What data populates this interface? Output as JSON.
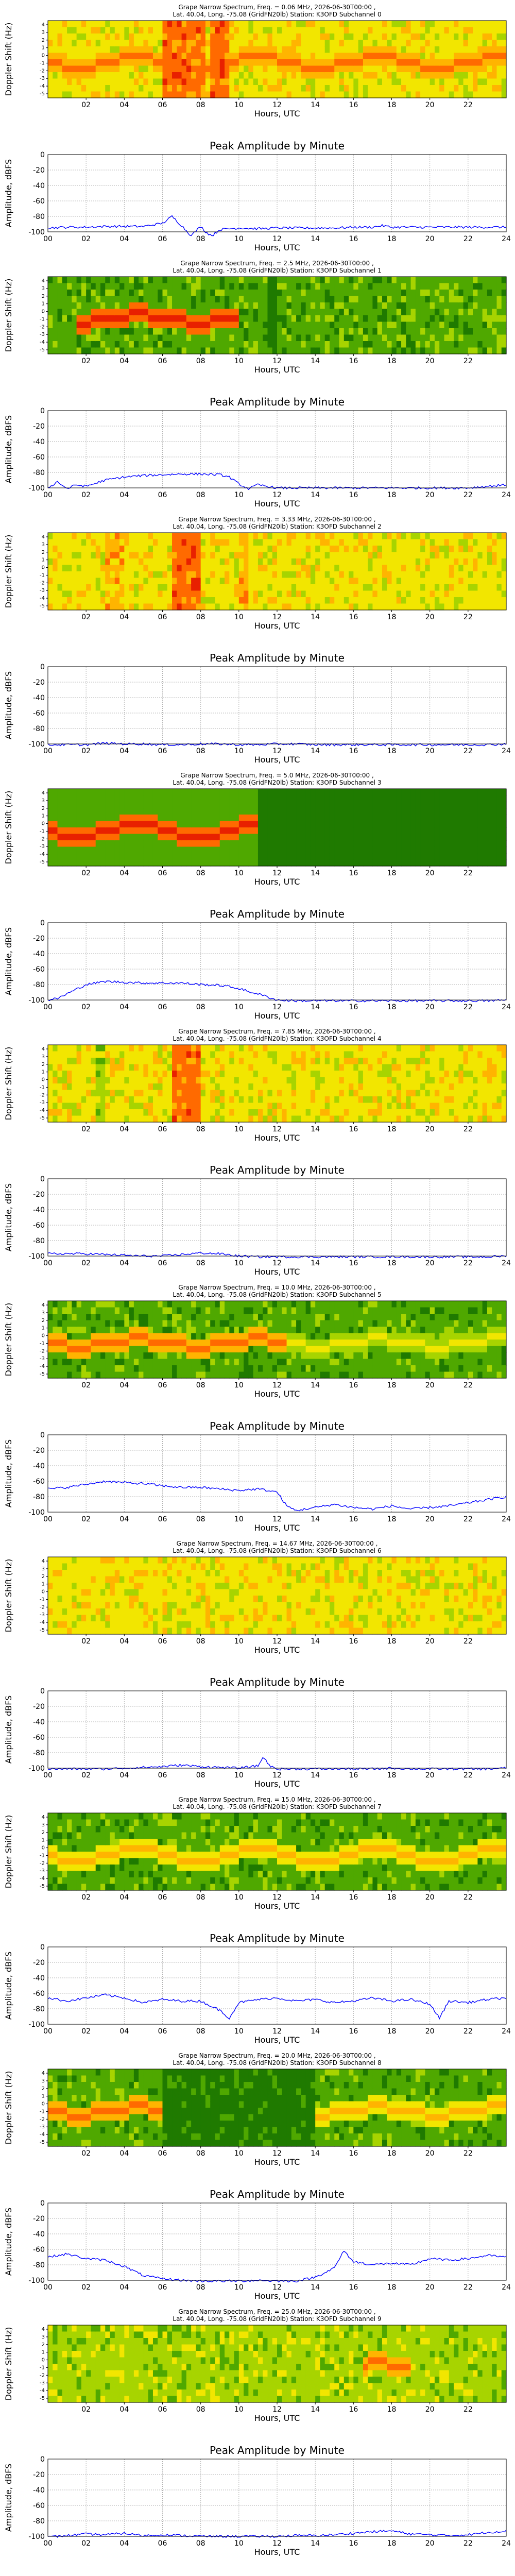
{
  "chart_data": {
    "type": "grape-spectrogram-and-amplitude",
    "channels": [
      {
        "spectrogram": {
          "title_line1": "Grape Narrow Spectrum, Freq. = 0.06 MHz, 2026-06-30T00:00 ,",
          "title_line2": "Lat.  40.04, Long. -75.08 (GridFN20lb) Station: K3OFD Subchannel 0",
          "xlabel": "Hours, UTC",
          "ylabel": "Doppler Shift (Hz)"
        },
        "amplitude": {
          "title": "Peak Amplitude by Minute",
          "xlabel": "Hours, UTC",
          "ylabel": "Amplitude, dBFS",
          "ylim": [
            -100,
            0
          ],
          "x": [
            0,
            1,
            2,
            3,
            4,
            5,
            6,
            6.5,
            7,
            7.5,
            8,
            8.3,
            8.6,
            9,
            10,
            11,
            12,
            13,
            14,
            15,
            16,
            17,
            17.5,
            18,
            19,
            20,
            21,
            22,
            23,
            24
          ],
          "y": [
            -95,
            -94,
            -94,
            -93,
            -93,
            -93,
            -89,
            -80,
            -92,
            -105,
            -93,
            -101,
            -105,
            -97,
            -95,
            -96,
            -95,
            -95,
            -95,
            -95,
            -94,
            -94,
            -92,
            -94,
            -94,
            -94,
            -94,
            -94,
            -94,
            -94
          ]
        }
      },
      {
        "spectrogram": {
          "title_line1": "Grape Narrow Spectrum, Freq. = 2.5 MHz, 2026-06-30T00:00 ,",
          "title_line2": "Lat.  40.04, Long. -75.08 (GridFN20lb) Station: K3OFD Subchannel 1",
          "xlabel": "Hours, UTC",
          "ylabel": "Doppler Shift (Hz)"
        },
        "amplitude": {
          "title": "Peak Amplitude by Minute",
          "xlabel": "Hours, UTC",
          "ylabel": "Amplitude, dBFS",
          "ylim": [
            -100,
            0
          ],
          "x": [
            0,
            0.5,
            1,
            1.5,
            2,
            3,
            4,
            5,
            6,
            7,
            8,
            9,
            9.5,
            10,
            10.5,
            11,
            12,
            13,
            14,
            15,
            16,
            17,
            18,
            19,
            20,
            21,
            22,
            23,
            24
          ],
          "y": [
            -100,
            -92,
            -101,
            -96,
            -98,
            -90,
            -86,
            -84,
            -83,
            -82,
            -82,
            -83,
            -86,
            -95,
            -101,
            -96,
            -100,
            -100,
            -100,
            -100,
            -100,
            -100,
            -100,
            -100,
            -100,
            -100,
            -100,
            -98,
            -96
          ]
        }
      },
      {
        "spectrogram": {
          "title_line1": "Grape Narrow Spectrum, Freq. = 3.33 MHz, 2026-06-30T00:00 ,",
          "title_line2": "Lat.  40.04, Long. -75.08 (GridFN20lb) Station: K3OFD Subchannel 2",
          "xlabel": "Hours, UTC",
          "ylabel": "Doppler Shift (Hz)"
        },
        "amplitude": {
          "title": "Peak Amplitude by Minute",
          "xlabel": "Hours, UTC",
          "ylabel": "Amplitude, dBFS",
          "ylim": [
            -100,
            0
          ],
          "x": [
            0,
            1,
            2,
            3,
            4,
            5,
            6,
            7,
            8,
            9,
            10,
            11,
            12,
            13,
            14,
            15,
            16,
            17,
            18,
            19,
            20,
            21,
            22,
            23,
            24
          ],
          "y": [
            -101,
            -101,
            -101,
            -99,
            -100,
            -100,
            -101,
            -101,
            -100,
            -100,
            -101,
            -101,
            -100,
            -100,
            -101,
            -101,
            -101,
            -101,
            -101,
            -101,
            -101,
            -101,
            -101,
            -101,
            -100
          ]
        }
      },
      {
        "spectrogram": {
          "title_line1": "Grape Narrow Spectrum, Freq. = 5.0 MHz, 2026-06-30T00:00 ,",
          "title_line2": "Lat.  40.04, Long. -75.08 (GridFN20lb) Station: K3OFD Subchannel 3",
          "xlabel": "Hours, UTC",
          "ylabel": "Doppler Shift (Hz)"
        },
        "amplitude": {
          "title": "Peak Amplitude by Minute",
          "xlabel": "Hours, UTC",
          "ylabel": "Amplitude, dBFS",
          "ylim": [
            -100,
            0
          ],
          "x": [
            0,
            0.5,
            1,
            1.5,
            2,
            3,
            4,
            5,
            6,
            7,
            8,
            9,
            10,
            10.5,
            11,
            11.5,
            12,
            13,
            14,
            15,
            16,
            17,
            18,
            19,
            20,
            21,
            22,
            23,
            24
          ],
          "y": [
            -100,
            -98,
            -92,
            -86,
            -80,
            -76,
            -77,
            -78,
            -78,
            -78,
            -80,
            -81,
            -85,
            -89,
            -92,
            -96,
            -100,
            -101,
            -101,
            -101,
            -101,
            -101,
            -101,
            -101,
            -101,
            -101,
            -101,
            -101,
            -100
          ]
        }
      },
      {
        "spectrogram": {
          "title_line1": "Grape Narrow Spectrum, Freq. = 7.85 MHz, 2026-06-30T00:00 ,",
          "title_line2": "Lat.  40.04, Long. -75.08 (GridFN20lb) Station: K3OFD Subchannel 4",
          "xlabel": "Hours, UTC",
          "ylabel": "Doppler Shift (Hz)"
        },
        "amplitude": {
          "title": "Peak Amplitude by Minute",
          "xlabel": "Hours, UTC",
          "ylabel": "Amplitude, dBFS",
          "ylim": [
            -100,
            0
          ],
          "x": [
            0,
            1,
            2,
            3,
            4,
            5,
            6,
            7,
            8,
            9,
            10,
            11,
            12,
            13,
            14,
            15,
            16,
            17,
            18,
            19,
            20,
            21,
            22,
            23,
            24
          ],
          "y": [
            -97,
            -97,
            -97,
            -98,
            -99,
            -100,
            -100,
            -98,
            -96,
            -97,
            -100,
            -101,
            -101,
            -101,
            -101,
            -101,
            -101,
            -101,
            -101,
            -101,
            -101,
            -101,
            -101,
            -101,
            -100
          ]
        }
      },
      {
        "spectrogram": {
          "title_line1": "Grape Narrow Spectrum, Freq. = 10.0 MHz, 2026-06-30T00:00 ,",
          "title_line2": "Lat.  40.04, Long. -75.08 (GridFN20lb) Station: K3OFD Subchannel 5",
          "xlabel": "Hours, UTC",
          "ylabel": "Doppler Shift (Hz)"
        },
        "amplitude": {
          "title": "Peak Amplitude by Minute",
          "xlabel": "Hours, UTC",
          "ylabel": "Amplitude, dBFS",
          "ylim": [
            -100,
            0
          ],
          "x": [
            0,
            1,
            2,
            3,
            4,
            5,
            6,
            7,
            8,
            9,
            10,
            11,
            12,
            12.5,
            13,
            14,
            15,
            16,
            17,
            18,
            19,
            20,
            21,
            22,
            23,
            24
          ],
          "y": [
            -70,
            -68,
            -64,
            -60,
            -62,
            -63,
            -66,
            -68,
            -68,
            -70,
            -72,
            -70,
            -74,
            -92,
            -98,
            -94,
            -90,
            -94,
            -96,
            -92,
            -96,
            -94,
            -92,
            -88,
            -84,
            -80
          ]
        }
      },
      {
        "spectrogram": {
          "title_line1": "Grape Narrow Spectrum, Freq. = 14.67 MHz, 2026-06-30T00:00 ,",
          "title_line2": "Lat.  40.04, Long. -75.08 (GridFN20lb) Station: K3OFD Subchannel 6",
          "xlabel": "Hours, UTC",
          "ylabel": "Doppler Shift (Hz)"
        },
        "amplitude": {
          "title": "Peak Amplitude by Minute",
          "xlabel": "Hours, UTC",
          "ylabel": "Amplitude, dBFS",
          "ylim": [
            -100,
            0
          ],
          "x": [
            0,
            1,
            2,
            3,
            4,
            5,
            6,
            7,
            8,
            9,
            10,
            11,
            11.3,
            11.6,
            12,
            13,
            14,
            15,
            16,
            17,
            18,
            19,
            20,
            21,
            22,
            23,
            24
          ],
          "y": [
            -101,
            -101,
            -101,
            -101,
            -100,
            -99,
            -98,
            -96,
            -98,
            -99,
            -100,
            -97,
            -85,
            -97,
            -101,
            -101,
            -101,
            -101,
            -101,
            -101,
            -100,
            -101,
            -101,
            -101,
            -101,
            -101,
            -100
          ]
        }
      },
      {
        "spectrogram": {
          "title_line1": "Grape Narrow Spectrum, Freq. = 15.0 MHz, 2026-06-30T00:00 ,",
          "title_line2": "Lat.  40.04, Long. -75.08 (GridFN20lb) Station: K3OFD Subchannel 7",
          "xlabel": "Hours, UTC",
          "ylabel": "Doppler Shift (Hz)"
        },
        "amplitude": {
          "title": "Peak Amplitude by Minute",
          "xlabel": "Hours, UTC",
          "ylabel": "Amplitude, dBFS",
          "ylim": [
            -100,
            0
          ],
          "x": [
            0,
            1,
            2,
            3,
            4,
            5,
            6,
            7,
            8,
            9,
            9.5,
            10,
            11,
            12,
            13,
            14,
            15,
            16,
            17,
            18,
            19,
            20,
            20.5,
            21,
            22,
            23,
            24
          ],
          "y": [
            -66,
            -70,
            -66,
            -62,
            -66,
            -72,
            -68,
            -70,
            -70,
            -82,
            -92,
            -72,
            -68,
            -66,
            -70,
            -68,
            -72,
            -70,
            -66,
            -70,
            -68,
            -74,
            -92,
            -70,
            -72,
            -68,
            -66
          ]
        }
      },
      {
        "spectrogram": {
          "title_line1": "Grape Narrow Spectrum, Freq. = 20.0 MHz, 2026-06-30T00:00 ,",
          "title_line2": "Lat.  40.04, Long. -75.08 (GridFN20lb) Station: K3OFD Subchannel 8",
          "xlabel": "Hours, UTC",
          "ylabel": "Doppler Shift (Hz)"
        },
        "amplitude": {
          "title": "Peak Amplitude by Minute",
          "xlabel": "Hours, UTC",
          "ylabel": "Amplitude, dBFS",
          "ylim": [
            -100,
            0
          ],
          "x": [
            0,
            1,
            2,
            3,
            4,
            5,
            6,
            7,
            8,
            9,
            10,
            11,
            12,
            13,
            14,
            15,
            15.5,
            16,
            17,
            18,
            19,
            20,
            21,
            22,
            23,
            24
          ],
          "y": [
            -70,
            -66,
            -72,
            -74,
            -82,
            -94,
            -98,
            -100,
            -101,
            -101,
            -101,
            -100,
            -101,
            -101,
            -96,
            -84,
            -62,
            -76,
            -80,
            -78,
            -80,
            -72,
            -74,
            -72,
            -68,
            -70
          ]
        }
      },
      {
        "spectrogram": {
          "title_line1": "Grape Narrow Spectrum, Freq. = 25.0 MHz, 2026-06-30T00:00 ,",
          "title_line2": "Lat.  40.04, Long. -75.08 (GridFN20lb) Station: K3OFD Subchannel 9",
          "xlabel": "Hours, UTC",
          "ylabel": "Doppler Shift (Hz)"
        },
        "amplitude": {
          "title": "Peak Amplitude by Minute",
          "xlabel": "Hours, UTC",
          "ylabel": "Amplitude, dBFS",
          "ylim": [
            -100,
            0
          ],
          "x": [
            0,
            1,
            2,
            3,
            4,
            5,
            6,
            7,
            8,
            9,
            10,
            11,
            12,
            13,
            14,
            15,
            16,
            17,
            18,
            19,
            20,
            21,
            22,
            23,
            24
          ],
          "y": [
            -101,
            -99,
            -97,
            -98,
            -96,
            -99,
            -98,
            -99,
            -100,
            -100,
            -100,
            -100,
            -100,
            -99,
            -99,
            -98,
            -96,
            -94,
            -93,
            -97,
            -98,
            -99,
            -98,
            -95,
            -93
          ]
        }
      }
    ],
    "doppler_ticks": [
      "4",
      "3",
      "2",
      "1",
      "0",
      "-1",
      "-2",
      "-3",
      "-4",
      "-5"
    ],
    "spectrogram_xticks": [
      "02",
      "04",
      "06",
      "08",
      "10",
      "12",
      "14",
      "16",
      "18",
      "20",
      "22"
    ],
    "amplitude_xticks": [
      "00",
      "02",
      "04",
      "06",
      "08",
      "10",
      "12",
      "14",
      "16",
      "18",
      "20",
      "22",
      "24"
    ],
    "amplitude_yticks": [
      "0",
      "-20",
      "-40",
      "-60",
      "-80",
      "-100"
    ],
    "line_color": "#0000ff",
    "colormap": [
      "#1f7a00",
      "#4fa800",
      "#a7d400",
      "#f2e600",
      "#ffb400",
      "#ff6a00",
      "#e82000"
    ]
  }
}
